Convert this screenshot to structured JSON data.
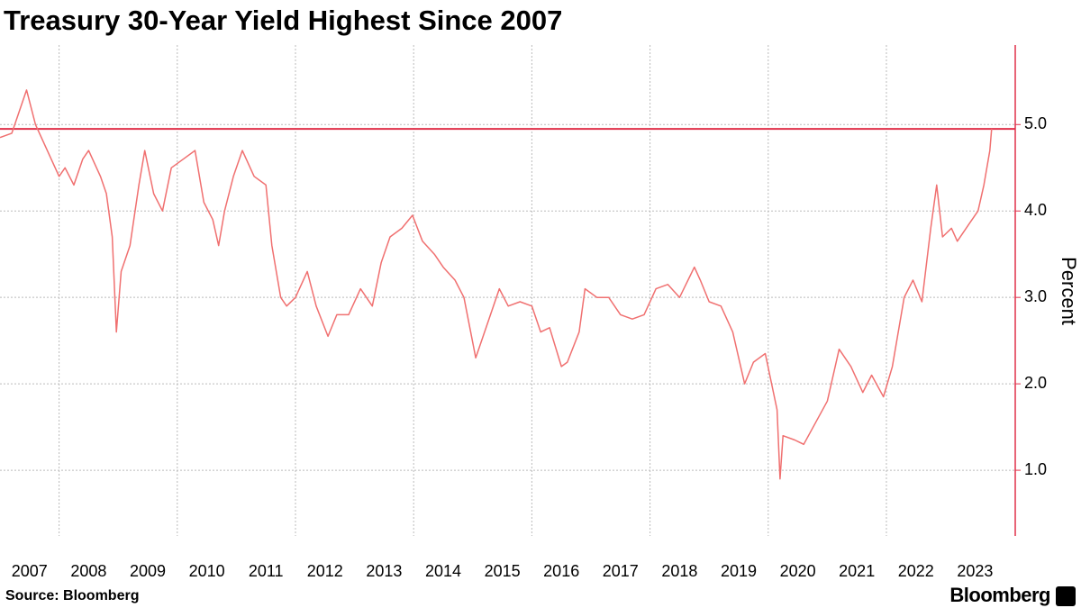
{
  "chart_data": {
    "type": "line",
    "title": "Treasury 30-Year Yield Highest Since 2007",
    "y_label": "Percent",
    "source": "Source: Bloomberg",
    "brand": "Bloomberg",
    "x": [
      2007.0,
      2007.2,
      2007.45,
      2007.6,
      2007.8,
      2008.0,
      2008.1,
      2008.25,
      2008.4,
      2008.5,
      2008.7,
      2008.8,
      2008.9,
      2008.97,
      2009.05,
      2009.2,
      2009.35,
      2009.45,
      2009.6,
      2009.75,
      2009.9,
      2010.1,
      2010.3,
      2010.45,
      2010.6,
      2010.7,
      2010.8,
      2010.95,
      2011.1,
      2011.3,
      2011.5,
      2011.6,
      2011.75,
      2011.85,
      2012.0,
      2012.2,
      2012.35,
      2012.55,
      2012.7,
      2012.9,
      2013.1,
      2013.3,
      2013.45,
      2013.6,
      2013.8,
      2013.98,
      2014.15,
      2014.35,
      2014.5,
      2014.7,
      2014.85,
      2015.05,
      2015.25,
      2015.45,
      2015.6,
      2015.8,
      2016.0,
      2016.15,
      2016.3,
      2016.5,
      2016.6,
      2016.8,
      2016.9,
      2017.1,
      2017.3,
      2017.5,
      2017.7,
      2017.9,
      2018.1,
      2018.3,
      2018.5,
      2018.75,
      2018.85,
      2019.0,
      2019.2,
      2019.4,
      2019.6,
      2019.75,
      2019.95,
      2020.15,
      2020.2,
      2020.25,
      2020.45,
      2020.6,
      2020.8,
      2021.0,
      2021.2,
      2021.4,
      2021.6,
      2021.75,
      2021.95,
      2022.1,
      2022.3,
      2022.45,
      2022.6,
      2022.75,
      2022.85,
      2022.95,
      2023.1,
      2023.2,
      2023.4,
      2023.55,
      2023.65,
      2023.75,
      2023.78
    ],
    "values": [
      4.85,
      4.9,
      5.4,
      5.0,
      4.7,
      4.4,
      4.5,
      4.3,
      4.6,
      4.7,
      4.4,
      4.2,
      3.7,
      2.6,
      3.3,
      3.6,
      4.3,
      4.7,
      4.2,
      4.0,
      4.5,
      4.6,
      4.7,
      4.1,
      3.9,
      3.6,
      4.0,
      4.4,
      4.7,
      4.4,
      4.3,
      3.6,
      3.0,
      2.9,
      3.0,
      3.3,
      2.9,
      2.55,
      2.8,
      2.8,
      3.1,
      2.9,
      3.4,
      3.7,
      3.8,
      3.95,
      3.65,
      3.5,
      3.35,
      3.2,
      3.0,
      2.3,
      2.7,
      3.1,
      2.9,
      2.95,
      2.9,
      2.6,
      2.65,
      2.2,
      2.25,
      2.6,
      3.1,
      3.0,
      3.0,
      2.8,
      2.75,
      2.8,
      3.1,
      3.15,
      3.0,
      3.35,
      3.2,
      2.95,
      2.9,
      2.6,
      2.0,
      2.25,
      2.35,
      1.7,
      0.9,
      1.4,
      1.35,
      1.3,
      1.55,
      1.8,
      2.4,
      2.2,
      1.9,
      2.1,
      1.85,
      2.2,
      3.0,
      3.2,
      2.95,
      3.8,
      4.3,
      3.7,
      3.8,
      3.65,
      3.85,
      4.0,
      4.3,
      4.7,
      4.95
    ],
    "color": "#f07070",
    "reference_line": 4.95,
    "reference_color": "#e0304a",
    "axis_color": "#e0304a",
    "xlim": [
      2007,
      2024.18
    ],
    "ylim": [
      0.24,
      5.92
    ],
    "xticks": [
      {
        "value": 2007,
        "label": "2007"
      },
      {
        "value": 2008,
        "label": "2008"
      },
      {
        "value": 2009,
        "label": "2009"
      },
      {
        "value": 2010,
        "label": "2010"
      },
      {
        "value": 2011,
        "label": "2011"
      },
      {
        "value": 2012,
        "label": "2012"
      },
      {
        "value": 2013,
        "label": "2013"
      },
      {
        "value": 2014,
        "label": "2014"
      },
      {
        "value": 2015,
        "label": "2015"
      },
      {
        "value": 2016,
        "label": "2016"
      },
      {
        "value": 2017,
        "label": "2017"
      },
      {
        "value": 2018,
        "label": "2018"
      },
      {
        "value": 2019,
        "label": "2019"
      },
      {
        "value": 2020,
        "label": "2020"
      },
      {
        "value": 2021,
        "label": "2021"
      },
      {
        "value": 2022,
        "label": "2022"
      },
      {
        "value": 2023,
        "label": "2023"
      }
    ],
    "yticks": [
      {
        "value": 1,
        "label": "1.0"
      },
      {
        "value": 2,
        "label": "2.0"
      },
      {
        "value": 3,
        "label": "3.0"
      },
      {
        "value": 4,
        "label": "4.0"
      },
      {
        "value": 5,
        "label": "5.0"
      }
    ],
    "grid": true
  }
}
